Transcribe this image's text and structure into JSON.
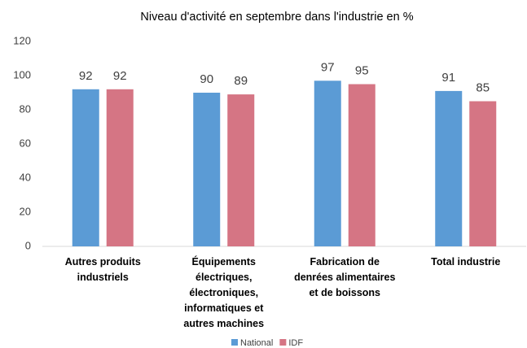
{
  "chart_data": {
    "type": "bar",
    "title": "Niveau d'activité en septembre dans l'industrie en %",
    "categories": [
      "Autres produits industriels",
      "Équipements électriques, électroniques, informatiques et autres machines",
      "Fabrication de denrées alimentaires et de boissons",
      "Total industrie"
    ],
    "series": [
      {
        "name": "National",
        "color": "#5b9bd5",
        "values": [
          92,
          90,
          97,
          91
        ]
      },
      {
        "name": "IDF",
        "color": "#d57584",
        "values": [
          92,
          89,
          95,
          85
        ]
      }
    ],
    "ylim": [
      0,
      120
    ],
    "yticks": [
      0,
      20,
      40,
      60,
      80,
      100,
      120
    ],
    "grid": false,
    "legend": "bottom"
  }
}
